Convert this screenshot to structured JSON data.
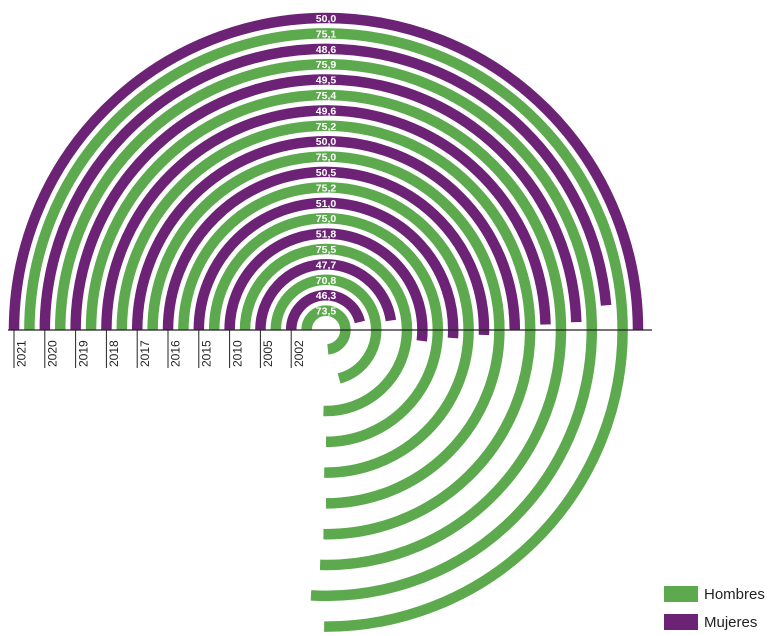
{
  "chart_data": {
    "type": "radial-bar",
    "title": "",
    "series": [
      {
        "name": "Hombres",
        "color": "#5DA94E"
      },
      {
        "name": "Mujeres",
        "color": "#6C2376"
      }
    ],
    "categories": [
      "2021",
      "2020",
      "2019",
      "2018",
      "2017",
      "2016",
      "2015",
      "2010",
      "2005",
      "2002"
    ],
    "data": [
      {
        "year": "2021",
        "hombres": 75.1,
        "mujeres": 50.0
      },
      {
        "year": "2020",
        "hombres": 75.9,
        "mujeres": 48.6
      },
      {
        "year": "2019",
        "hombres": 75.4,
        "mujeres": 49.5
      },
      {
        "year": "2018",
        "hombres": 75.2,
        "mujeres": 49.6
      },
      {
        "year": "2017",
        "hombres": 75.0,
        "mujeres": 50.0
      },
      {
        "year": "2016",
        "hombres": 75.2,
        "mujeres": 50.5
      },
      {
        "year": "2015",
        "hombres": 75.0,
        "mujeres": 51.0
      },
      {
        "year": "2010",
        "hombres": 75.5,
        "mujeres": 51.8
      },
      {
        "year": "2005",
        "hombres": 70.8,
        "mujeres": 47.7
      },
      {
        "year": "2002",
        "hombres": 73.5,
        "mujeres": 46.3
      }
    ],
    "value_labels": [
      "50,0",
      "75,1",
      "48,6",
      "75,9",
      "49,5",
      "75,4",
      "49,6",
      "75,2",
      "50,0",
      "75,0",
      "50,5",
      "75,2",
      "51,0",
      "75,0",
      "51,8",
      "75,5",
      "47,7",
      "70,8",
      "46,3",
      "73,5"
    ],
    "max_value": 100
  },
  "legend": [
    {
      "label": "Hombres",
      "color": "#5DA94E"
    },
    {
      "label": "Mujeres",
      "color": "#6C2376"
    }
  ]
}
